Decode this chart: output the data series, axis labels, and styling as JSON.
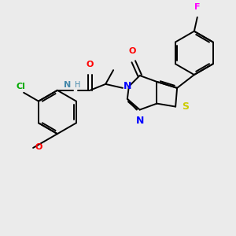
{
  "bg_color": "#ebebeb",
  "bond_color": "#000000",
  "bond_width": 1.4,
  "figsize": [
    3.0,
    3.0
  ],
  "dpi": 100,
  "colors": {
    "N": "#0000ff",
    "O": "#ff0000",
    "S": "#cccc00",
    "Cl": "#00aa00",
    "F": "#ff00ff",
    "NH": "#4488aa",
    "C": "#000000"
  }
}
